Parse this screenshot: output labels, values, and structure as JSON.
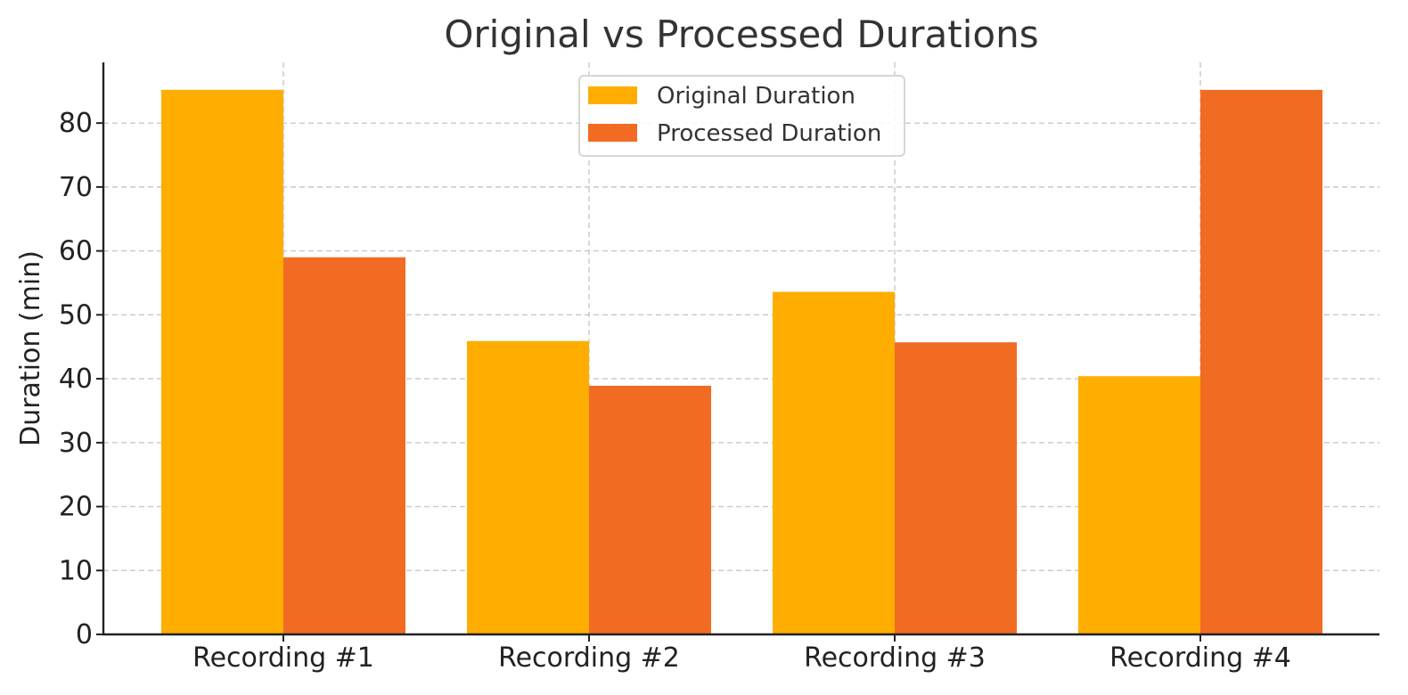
{
  "chart_data": {
    "type": "bar",
    "title": "Original vs Processed Durations",
    "xlabel": "",
    "ylabel": "Duration (min)",
    "categories": [
      "Recording #1",
      "Recording #2",
      "Recording #3",
      "Recording #4"
    ],
    "series": [
      {
        "name": "Original Duration",
        "color": "#FFAD00",
        "values": [
          85.2,
          45.9,
          53.6,
          40.4
        ]
      },
      {
        "name": "Processed Duration",
        "color": "#F26B22",
        "values": [
          59.0,
          38.9,
          45.7,
          85.2
        ]
      }
    ],
    "ylim": [
      0,
      89.5
    ],
    "yticks": [
      0,
      10,
      20,
      30,
      40,
      50,
      60,
      70,
      80
    ],
    "grid": true,
    "legend_position": "top-center"
  }
}
